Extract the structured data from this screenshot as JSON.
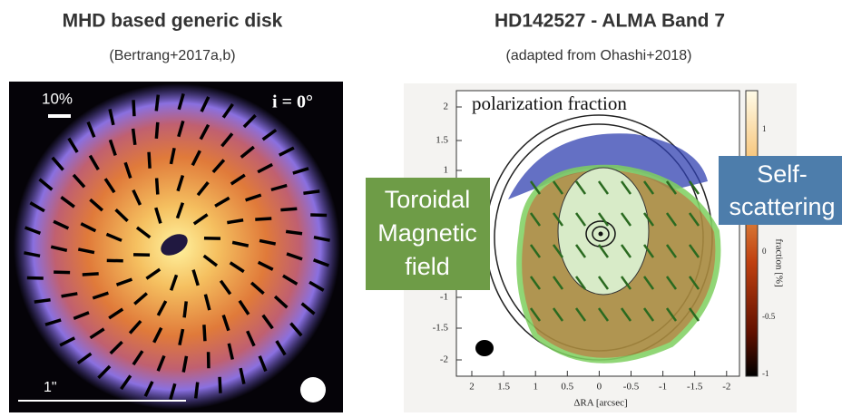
{
  "left_panel": {
    "title": "MHD based generic disk",
    "subtitle": "(Bertrang+2017a,b)",
    "scale_label": "10%",
    "inclination": "i = 0°",
    "size_label": "1\""
  },
  "right_panel": {
    "title": "HD142527 - ALMA Band 7",
    "subtitle": "(adapted from Ohashi+2018)",
    "plot_title": "polarization fraction",
    "y_ticks": [
      "2",
      "1.5",
      "1",
      "-1",
      "-1.5",
      "-2"
    ],
    "x_ticks": [
      "2",
      "1.5",
      "1",
      "0.5",
      "0",
      "-0.5",
      "-1",
      "-1.5",
      "-2"
    ],
    "x_label": "ΔRA [arcsec]",
    "colorbar_ticks": [
      "1",
      "0",
      "-0.5",
      "-1"
    ],
    "colorbar_label": "fraction [%]"
  },
  "callouts": {
    "left": [
      "Toroidal",
      "Magnetic",
      "field"
    ],
    "right": [
      "Self-",
      "scattering"
    ]
  }
}
